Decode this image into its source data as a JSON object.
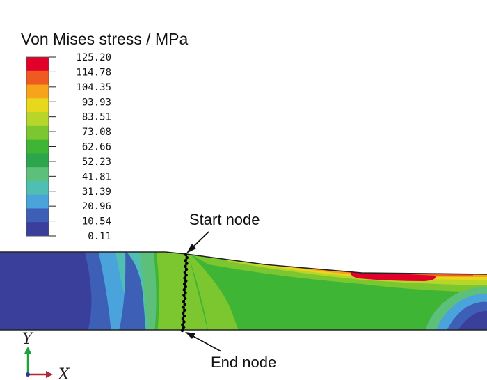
{
  "legend": {
    "title": "Von Mises stress / MPa",
    "levels": [
      "125.20",
      "114.78",
      "104.35",
      "93.93",
      "83.51",
      "73.08",
      "62.66",
      "52.23",
      "41.81",
      "31.39",
      "20.96",
      "10.54",
      "0.11"
    ],
    "colors": [
      "#e0002a",
      "#ee5a1f",
      "#f7a31b",
      "#e8d81c",
      "#b8d62a",
      "#7cc62f",
      "#3fb536",
      "#2ca64a",
      "#5cc07a",
      "#4fbfb3",
      "#4aa3da",
      "#3e5fb6",
      "#3a3f9c"
    ]
  },
  "annotations": {
    "start_node": "Start node",
    "end_node": "End node"
  },
  "axes": {
    "y_label": "Y",
    "x_label": "X",
    "y_color": "#1aa33a",
    "x_color": "#b3263a"
  }
}
